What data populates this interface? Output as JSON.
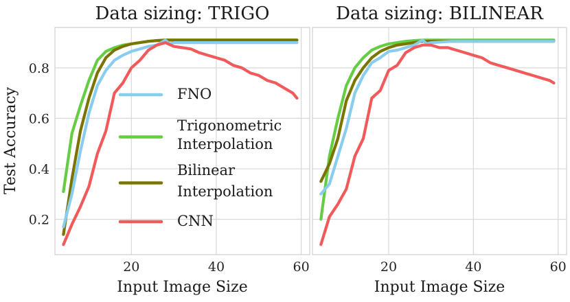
{
  "chart_data": [
    {
      "type": "line",
      "title": "Data sizing: TRIGO",
      "xlabel": "Input Image Size",
      "ylabel": "Test Accuracy",
      "xlim": [
        2,
        62
      ],
      "ylim": [
        0.06,
        0.96
      ],
      "xticks": [
        20,
        40,
        60
      ],
      "yticks": [
        0.2,
        0.4,
        0.6,
        0.8
      ],
      "xtick_labels": [
        "20",
        "40",
        "60"
      ],
      "ytick_labels": [
        "0.2",
        "0.4",
        "0.6",
        "0.8"
      ],
      "grid": true,
      "series": [
        {
          "name": "Trigonometric Interpolation",
          "color": "#66cc44",
          "x": [
            4,
            6,
            8,
            10,
            12,
            14,
            16,
            18,
            20,
            22,
            24,
            26,
            28,
            30,
            35,
            40,
            45,
            50,
            55,
            59
          ],
          "values": [
            0.31,
            0.54,
            0.65,
            0.75,
            0.83,
            0.865,
            0.88,
            0.89,
            0.895,
            0.9,
            0.905,
            0.908,
            0.91,
            0.91,
            0.91,
            0.91,
            0.91,
            0.91,
            0.91,
            0.91
          ]
        },
        {
          "name": "Bilinear Interpolation",
          "color": "#7a7400",
          "x": [
            4,
            6,
            8,
            10,
            12,
            14,
            16,
            18,
            20,
            22,
            24,
            26,
            28,
            30,
            35,
            40,
            45,
            50,
            55,
            59
          ],
          "values": [
            0.14,
            0.36,
            0.55,
            0.68,
            0.78,
            0.84,
            0.87,
            0.885,
            0.895,
            0.9,
            0.905,
            0.908,
            0.91,
            0.91,
            0.91,
            0.91,
            0.91,
            0.91,
            0.91,
            0.91
          ]
        },
        {
          "name": "FNO",
          "color": "#88ccee",
          "x": [
            4,
            6,
            8,
            10,
            12,
            14,
            16,
            18,
            20,
            22,
            24,
            26,
            28,
            29,
            30,
            35,
            40,
            45,
            50,
            55,
            59
          ],
          "values": [
            0.17,
            0.3,
            0.47,
            0.62,
            0.73,
            0.79,
            0.83,
            0.85,
            0.865,
            0.875,
            0.885,
            0.89,
            0.91,
            0.895,
            0.9,
            0.9,
            0.9,
            0.9,
            0.9,
            0.9,
            0.9
          ]
        },
        {
          "name": "CNN",
          "color": "#f05a5a",
          "x": [
            4,
            6,
            8,
            10,
            12,
            14,
            16,
            18,
            20,
            22,
            24,
            26,
            28,
            30,
            32,
            34,
            36,
            38,
            40,
            42,
            44,
            46,
            48,
            50,
            52,
            54,
            56,
            58,
            59
          ],
          "values": [
            0.1,
            0.18,
            0.25,
            0.33,
            0.46,
            0.55,
            0.7,
            0.74,
            0.8,
            0.83,
            0.87,
            0.89,
            0.9,
            0.885,
            0.88,
            0.875,
            0.86,
            0.85,
            0.84,
            0.83,
            0.81,
            0.8,
            0.78,
            0.77,
            0.75,
            0.74,
            0.72,
            0.7,
            0.68
          ]
        }
      ]
    },
    {
      "type": "line",
      "title": "Data sizing: BILINEAR",
      "xlabel": "Input Image Size",
      "ylabel": "",
      "xlim": [
        2,
        62
      ],
      "ylim": [
        0.06,
        0.96
      ],
      "xticks": [
        20,
        40,
        60
      ],
      "yticks": [
        0.2,
        0.4,
        0.6,
        0.8
      ],
      "xtick_labels": [
        "20",
        "40",
        "60"
      ],
      "ytick_labels": [],
      "grid": true,
      "series": [
        {
          "name": "Trigonometric Interpolation",
          "color": "#66cc44",
          "x": [
            4,
            6,
            8,
            10,
            12,
            14,
            16,
            18,
            20,
            22,
            24,
            26,
            28,
            30,
            35,
            40,
            45,
            50,
            55,
            59
          ],
          "values": [
            0.2,
            0.45,
            0.6,
            0.73,
            0.8,
            0.84,
            0.87,
            0.885,
            0.895,
            0.9,
            0.905,
            0.908,
            0.91,
            0.91,
            0.91,
            0.91,
            0.91,
            0.91,
            0.91,
            0.91
          ]
        },
        {
          "name": "Bilinear Interpolation",
          "color": "#7a7400",
          "x": [
            4,
            6,
            8,
            10,
            12,
            14,
            16,
            18,
            20,
            22,
            24,
            26,
            28,
            30,
            35,
            40,
            45,
            50,
            55,
            59
          ],
          "values": [
            0.35,
            0.42,
            0.52,
            0.67,
            0.75,
            0.8,
            0.84,
            0.865,
            0.88,
            0.89,
            0.895,
            0.9,
            0.905,
            0.905,
            0.905,
            0.905,
            0.905,
            0.905,
            0.905,
            0.905
          ]
        },
        {
          "name": "FNO",
          "color": "#88ccee",
          "x": [
            4,
            6,
            8,
            10,
            12,
            14,
            16,
            18,
            20,
            22,
            24,
            26,
            28,
            29,
            30,
            35,
            40,
            45,
            50,
            55,
            59
          ],
          "values": [
            0.3,
            0.34,
            0.45,
            0.56,
            0.7,
            0.77,
            0.82,
            0.84,
            0.865,
            0.87,
            0.88,
            0.89,
            0.91,
            0.895,
            0.9,
            0.905,
            0.905,
            0.905,
            0.905,
            0.905,
            0.905
          ]
        },
        {
          "name": "CNN",
          "color": "#f05a5a",
          "x": [
            4,
            6,
            8,
            10,
            12,
            14,
            16,
            18,
            20,
            22,
            24,
            26,
            28,
            30,
            32,
            34,
            36,
            38,
            40,
            42,
            44,
            46,
            48,
            50,
            52,
            54,
            56,
            58,
            59
          ],
          "values": [
            0.1,
            0.21,
            0.26,
            0.32,
            0.45,
            0.52,
            0.68,
            0.71,
            0.79,
            0.81,
            0.86,
            0.88,
            0.89,
            0.89,
            0.88,
            0.88,
            0.87,
            0.86,
            0.85,
            0.84,
            0.82,
            0.81,
            0.8,
            0.79,
            0.78,
            0.77,
            0.76,
            0.75,
            0.74
          ]
        }
      ]
    }
  ],
  "legend": {
    "placement": "left panel, center",
    "entries": [
      {
        "label_lines": [
          "FNO"
        ],
        "color": "#88ccee"
      },
      {
        "label_lines": [
          "Trigonometric",
          "Interpolation"
        ],
        "color": "#66cc44"
      },
      {
        "label_lines": [
          "Bilinear",
          "Interpolation"
        ],
        "color": "#7a7400"
      },
      {
        "label_lines": [
          "CNN"
        ],
        "color": "#f05a5a"
      }
    ]
  }
}
